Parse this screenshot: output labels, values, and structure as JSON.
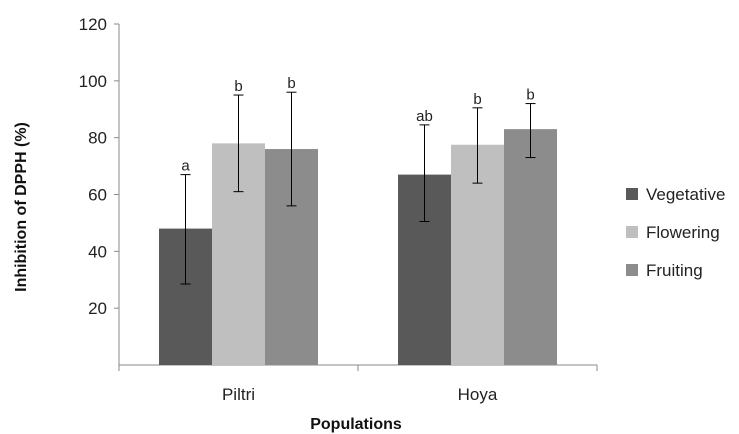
{
  "chart_data": {
    "type": "bar",
    "title": "",
    "xlabel": "Populations",
    "ylabel": "Inhibition of DPPH (%)",
    "ylim": [
      0,
      120
    ],
    "yticks": [
      20,
      40,
      60,
      80,
      100,
      120
    ],
    "grid": false,
    "legend_position": "right",
    "categories": [
      "Piltri",
      "Hoya"
    ],
    "series": [
      {
        "name": "Vegetative",
        "color": "#595959",
        "values": [
          48,
          67
        ],
        "error_low": [
          28.5,
          50.5
        ],
        "error_high": [
          67,
          84.5
        ],
        "significance": [
          "a",
          "ab"
        ]
      },
      {
        "name": "Flowering",
        "color": "#bfbfbf",
        "values": [
          78,
          77.5
        ],
        "error_low": [
          61,
          64
        ],
        "error_high": [
          95,
          90.5
        ],
        "significance": [
          "b",
          "b"
        ]
      },
      {
        "name": "Fruiting",
        "color": "#8c8c8c",
        "values": [
          76,
          83
        ],
        "error_low": [
          56,
          73
        ],
        "error_high": [
          96,
          92
        ],
        "significance": [
          "b",
          "b"
        ]
      }
    ]
  }
}
